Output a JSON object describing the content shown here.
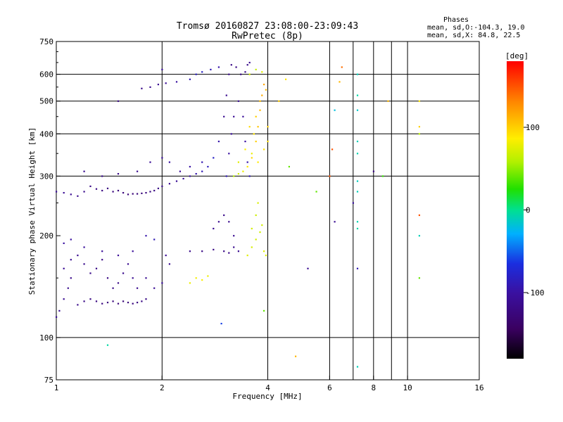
{
  "chart_data": {
    "type": "scatter",
    "title_line1": "Tromsø 20160827 23:08:00-23:09:43",
    "title_line2": "RwPretec (8p)",
    "xlabel": "Frequency [MHz]",
    "ylabel": "Stationary phase Virtual Height [km]",
    "x_scale": "log",
    "y_scale": "log",
    "xlim": [
      1,
      16
    ],
    "ylim": [
      75,
      750
    ],
    "x_ticks": [
      1,
      2,
      4,
      6,
      8,
      10,
      16
    ],
    "x_tick_labels": [
      "1",
      "2",
      "4",
      "6",
      "8",
      "10",
      "16"
    ],
    "x_gridlines": [
      2,
      4,
      6,
      7,
      8,
      9,
      10
    ],
    "y_ticks": [
      75,
      100,
      200,
      300,
      400,
      500,
      600,
      750
    ],
    "y_tick_labels": [
      "75",
      "100",
      "200",
      "300",
      "400",
      "500",
      "600",
      "750"
    ],
    "y_gridlines": [
      100,
      300,
      400,
      500,
      600
    ],
    "grid": true,
    "phases_header": "Phases",
    "phases_o": "mean, sd,O:-104.3, 19.0",
    "phases_x": "mean, sd,X:  84.8, 22.5",
    "colorbar": {
      "label": "[deg]",
      "range": [
        -180,
        180
      ],
      "tick_values": [
        100,
        0,
        -100
      ],
      "tick_labels": [
        "100",
        "0",
        "-100"
      ]
    },
    "series": [
      {
        "trace": "F-layer O-mode",
        "points": [
          [
            1.0,
            270,
            -105
          ],
          [
            1.05,
            268,
            -108
          ],
          [
            1.1,
            265,
            -110
          ],
          [
            1.15,
            262,
            -112
          ],
          [
            1.2,
            270,
            -115
          ],
          [
            1.25,
            280,
            -118
          ],
          [
            1.3,
            275,
            -120
          ],
          [
            1.35,
            272,
            -120
          ],
          [
            1.4,
            276,
            -122
          ],
          [
            1.45,
            270,
            -124
          ],
          [
            1.5,
            272,
            -125
          ],
          [
            1.55,
            268,
            -126
          ],
          [
            1.6,
            265,
            -128
          ],
          [
            1.65,
            266,
            -128
          ],
          [
            1.7,
            266,
            -126
          ],
          [
            1.75,
            267,
            -125
          ],
          [
            1.8,
            268,
            -124
          ],
          [
            1.85,
            270,
            -122
          ],
          [
            1.9,
            272,
            -120
          ],
          [
            1.95,
            276,
            -118
          ],
          [
            2.0,
            280,
            -116
          ],
          [
            2.1,
            285,
            -112
          ],
          [
            2.2,
            290,
            -108
          ],
          [
            2.3,
            295,
            -104
          ],
          [
            2.4,
            300,
            -100
          ],
          [
            2.5,
            305,
            -95
          ],
          [
            2.6,
            310,
            -90
          ],
          [
            2.7,
            320,
            -85
          ],
          [
            2.8,
            340,
            -80
          ],
          [
            2.9,
            380,
            -95
          ],
          [
            3.0,
            450,
            -110
          ],
          [
            3.05,
            520,
            -112
          ],
          [
            3.1,
            600,
            -115
          ],
          [
            3.15,
            640,
            -118
          ],
          [
            3.25,
            630,
            -120
          ],
          [
            3.35,
            600,
            -120
          ],
          [
            3.45,
            610,
            -118
          ],
          [
            3.5,
            640,
            -115
          ],
          [
            3.55,
            650,
            -112
          ],
          [
            1.2,
            310,
            -110
          ],
          [
            1.35,
            300,
            -115
          ],
          [
            1.5,
            305,
            -118
          ],
          [
            1.7,
            310,
            -112
          ],
          [
            1.85,
            330,
            -108
          ],
          [
            2.0,
            340,
            -105
          ],
          [
            2.1,
            330,
            -100
          ],
          [
            2.25,
            310,
            -105
          ],
          [
            2.4,
            320,
            -98
          ],
          [
            2.6,
            330,
            -92
          ],
          [
            1.75,
            545,
            -115
          ],
          [
            1.85,
            550,
            -112
          ],
          [
            1.95,
            560,
            -110
          ],
          [
            2.05,
            565,
            -108
          ],
          [
            2.2,
            570,
            -100
          ],
          [
            2.4,
            580,
            -90
          ],
          [
            2.5,
            600,
            -85
          ],
          [
            2.6,
            610,
            -82
          ],
          [
            2.75,
            620,
            -90
          ],
          [
            2.9,
            630,
            -95
          ],
          [
            3.05,
            300,
            -90
          ],
          [
            3.1,
            350,
            -100
          ],
          [
            3.15,
            400,
            -105
          ],
          [
            3.2,
            450,
            -108
          ],
          [
            3.3,
            500,
            -110
          ],
          [
            3.4,
            450,
            -105
          ],
          [
            3.45,
            380,
            -100
          ],
          [
            3.5,
            330,
            -95
          ],
          [
            3.55,
            300,
            -90
          ]
        ]
      },
      {
        "trace": "F-layer X-mode",
        "points": [
          [
            3.2,
            300,
            60
          ],
          [
            3.3,
            305,
            70
          ],
          [
            3.4,
            310,
            80
          ],
          [
            3.5,
            320,
            90
          ],
          [
            3.6,
            340,
            95
          ],
          [
            3.7,
            380,
            100
          ],
          [
            3.75,
            420,
            105
          ],
          [
            3.8,
            470,
            110
          ],
          [
            3.85,
            520,
            115
          ],
          [
            3.9,
            560,
            118
          ],
          [
            3.6,
            350,
            80
          ],
          [
            3.65,
            400,
            90
          ],
          [
            3.7,
            450,
            100
          ],
          [
            3.8,
            500,
            108
          ],
          [
            3.95,
            540,
            112
          ],
          [
            3.55,
            600,
            70
          ],
          [
            3.7,
            620,
            65
          ],
          [
            3.85,
            610,
            75
          ],
          [
            4.0,
            380,
            95
          ],
          [
            4.0,
            420,
            100
          ],
          [
            3.3,
            330,
            75
          ],
          [
            3.45,
            360,
            85
          ],
          [
            3.55,
            420,
            95
          ],
          [
            3.75,
            330,
            88
          ],
          [
            3.9,
            360,
            92
          ]
        ]
      },
      {
        "trace": "E / Es O-mode",
        "points": [
          [
            1.0,
            115,
            -105
          ],
          [
            1.02,
            120,
            -108
          ],
          [
            1.05,
            130,
            -110
          ],
          [
            1.08,
            140,
            -112
          ],
          [
            1.1,
            150,
            -115
          ],
          [
            1.15,
            125,
            -115
          ],
          [
            1.2,
            128,
            -118
          ],
          [
            1.25,
            130,
            -120
          ],
          [
            1.3,
            128,
            -122
          ],
          [
            1.35,
            126,
            -122
          ],
          [
            1.4,
            127,
            -124
          ],
          [
            1.45,
            128,
            -125
          ],
          [
            1.5,
            126,
            -126
          ],
          [
            1.55,
            128,
            -126
          ],
          [
            1.6,
            127,
            -125
          ],
          [
            1.65,
            126,
            -124
          ],
          [
            1.7,
            127,
            -122
          ],
          [
            1.75,
            128,
            -120
          ],
          [
            1.8,
            130,
            -118
          ],
          [
            1.05,
            160,
            -108
          ],
          [
            1.1,
            170,
            -110
          ],
          [
            1.15,
            175,
            -112
          ],
          [
            1.2,
            165,
            -114
          ],
          [
            1.25,
            155,
            -116
          ],
          [
            1.3,
            160,
            -118
          ],
          [
            1.35,
            170,
            -120
          ],
          [
            1.4,
            150,
            -120
          ],
          [
            1.45,
            140,
            -118
          ],
          [
            1.5,
            145,
            -116
          ],
          [
            1.55,
            155,
            -114
          ],
          [
            1.6,
            165,
            -112
          ],
          [
            1.65,
            150,
            -110
          ],
          [
            1.7,
            140,
            -112
          ],
          [
            1.8,
            150,
            -110
          ],
          [
            1.9,
            140,
            -108
          ],
          [
            2.0,
            145,
            -105
          ],
          [
            1.05,
            190,
            -100
          ],
          [
            1.1,
            195,
            -102
          ],
          [
            1.2,
            185,
            -104
          ],
          [
            1.35,
            180,
            -106
          ],
          [
            1.5,
            175,
            -108
          ],
          [
            1.65,
            180,
            -104
          ],
          [
            1.8,
            200,
            -95
          ],
          [
            1.9,
            195,
            -90
          ],
          [
            2.05,
            175,
            -110
          ],
          [
            2.1,
            165,
            -112
          ],
          [
            2.4,
            180,
            -115
          ],
          [
            2.6,
            180,
            -118
          ],
          [
            2.8,
            182,
            -120
          ],
          [
            3.0,
            180,
            -118
          ],
          [
            3.1,
            178,
            -115
          ],
          [
            3.2,
            185,
            -112
          ],
          [
            3.3,
            180,
            -110
          ],
          [
            2.8,
            210,
            -110
          ],
          [
            2.9,
            220,
            -112
          ],
          [
            3.0,
            230,
            -115
          ],
          [
            3.1,
            220,
            -112
          ],
          [
            3.2,
            200,
            -110
          ]
        ]
      },
      {
        "trace": "E / Es X-mode",
        "points": [
          [
            2.4,
            145,
            80
          ],
          [
            2.5,
            150,
            82
          ],
          [
            2.6,
            148,
            85
          ],
          [
            2.7,
            152,
            80
          ],
          [
            3.5,
            175,
            75
          ],
          [
            3.6,
            185,
            72
          ],
          [
            3.7,
            195,
            70
          ],
          [
            3.8,
            205,
            68
          ],
          [
            3.9,
            180,
            75
          ],
          [
            3.6,
            210,
            70
          ],
          [
            3.7,
            230,
            68
          ],
          [
            3.75,
            250,
            72
          ],
          [
            3.85,
            215,
            70
          ],
          [
            3.95,
            175,
            74
          ]
        ]
      },
      {
        "trace": "scattered",
        "points": [
          [
            1.4,
            95,
            -5
          ],
          [
            1.5,
            500,
            -120
          ],
          [
            2.0,
            620,
            -105
          ],
          [
            2.95,
            110,
            -60
          ],
          [
            3.9,
            120,
            40
          ],
          [
            5.2,
            160,
            -110
          ],
          [
            4.8,
            88,
            110
          ],
          [
            6.2,
            470,
            -20
          ],
          [
            6.4,
            570,
            110
          ],
          [
            6.5,
            630,
            140
          ],
          [
            7.2,
            600,
            -10
          ],
          [
            7.2,
            520,
            -5
          ],
          [
            7.2,
            470,
            -15
          ],
          [
            7.2,
            380,
            -10
          ],
          [
            7.2,
            350,
            -8
          ],
          [
            7.2,
            290,
            -12
          ],
          [
            7.2,
            270,
            -10
          ],
          [
            7.2,
            220,
            -8
          ],
          [
            7.2,
            210,
            -6
          ],
          [
            7.2,
            160,
            -90
          ],
          [
            7.2,
            82,
            -10
          ],
          [
            7.0,
            250,
            -100
          ],
          [
            8.0,
            310,
            -120
          ],
          [
            8.5,
            300,
            30
          ],
          [
            8.8,
            500,
            110
          ],
          [
            10.8,
            500,
            90
          ],
          [
            10.8,
            420,
            100
          ],
          [
            10.8,
            400,
            60
          ],
          [
            10.8,
            230,
            150
          ],
          [
            10.8,
            200,
            -10
          ],
          [
            10.8,
            150,
            40
          ],
          [
            6.2,
            220,
            -110
          ],
          [
            6.0,
            300,
            150
          ],
          [
            5.5,
            270,
            40
          ],
          [
            6.1,
            360,
            150
          ],
          [
            4.6,
            320,
            40
          ],
          [
            4.3,
            500,
            100
          ],
          [
            4.5,
            580,
            90
          ]
        ]
      }
    ]
  }
}
